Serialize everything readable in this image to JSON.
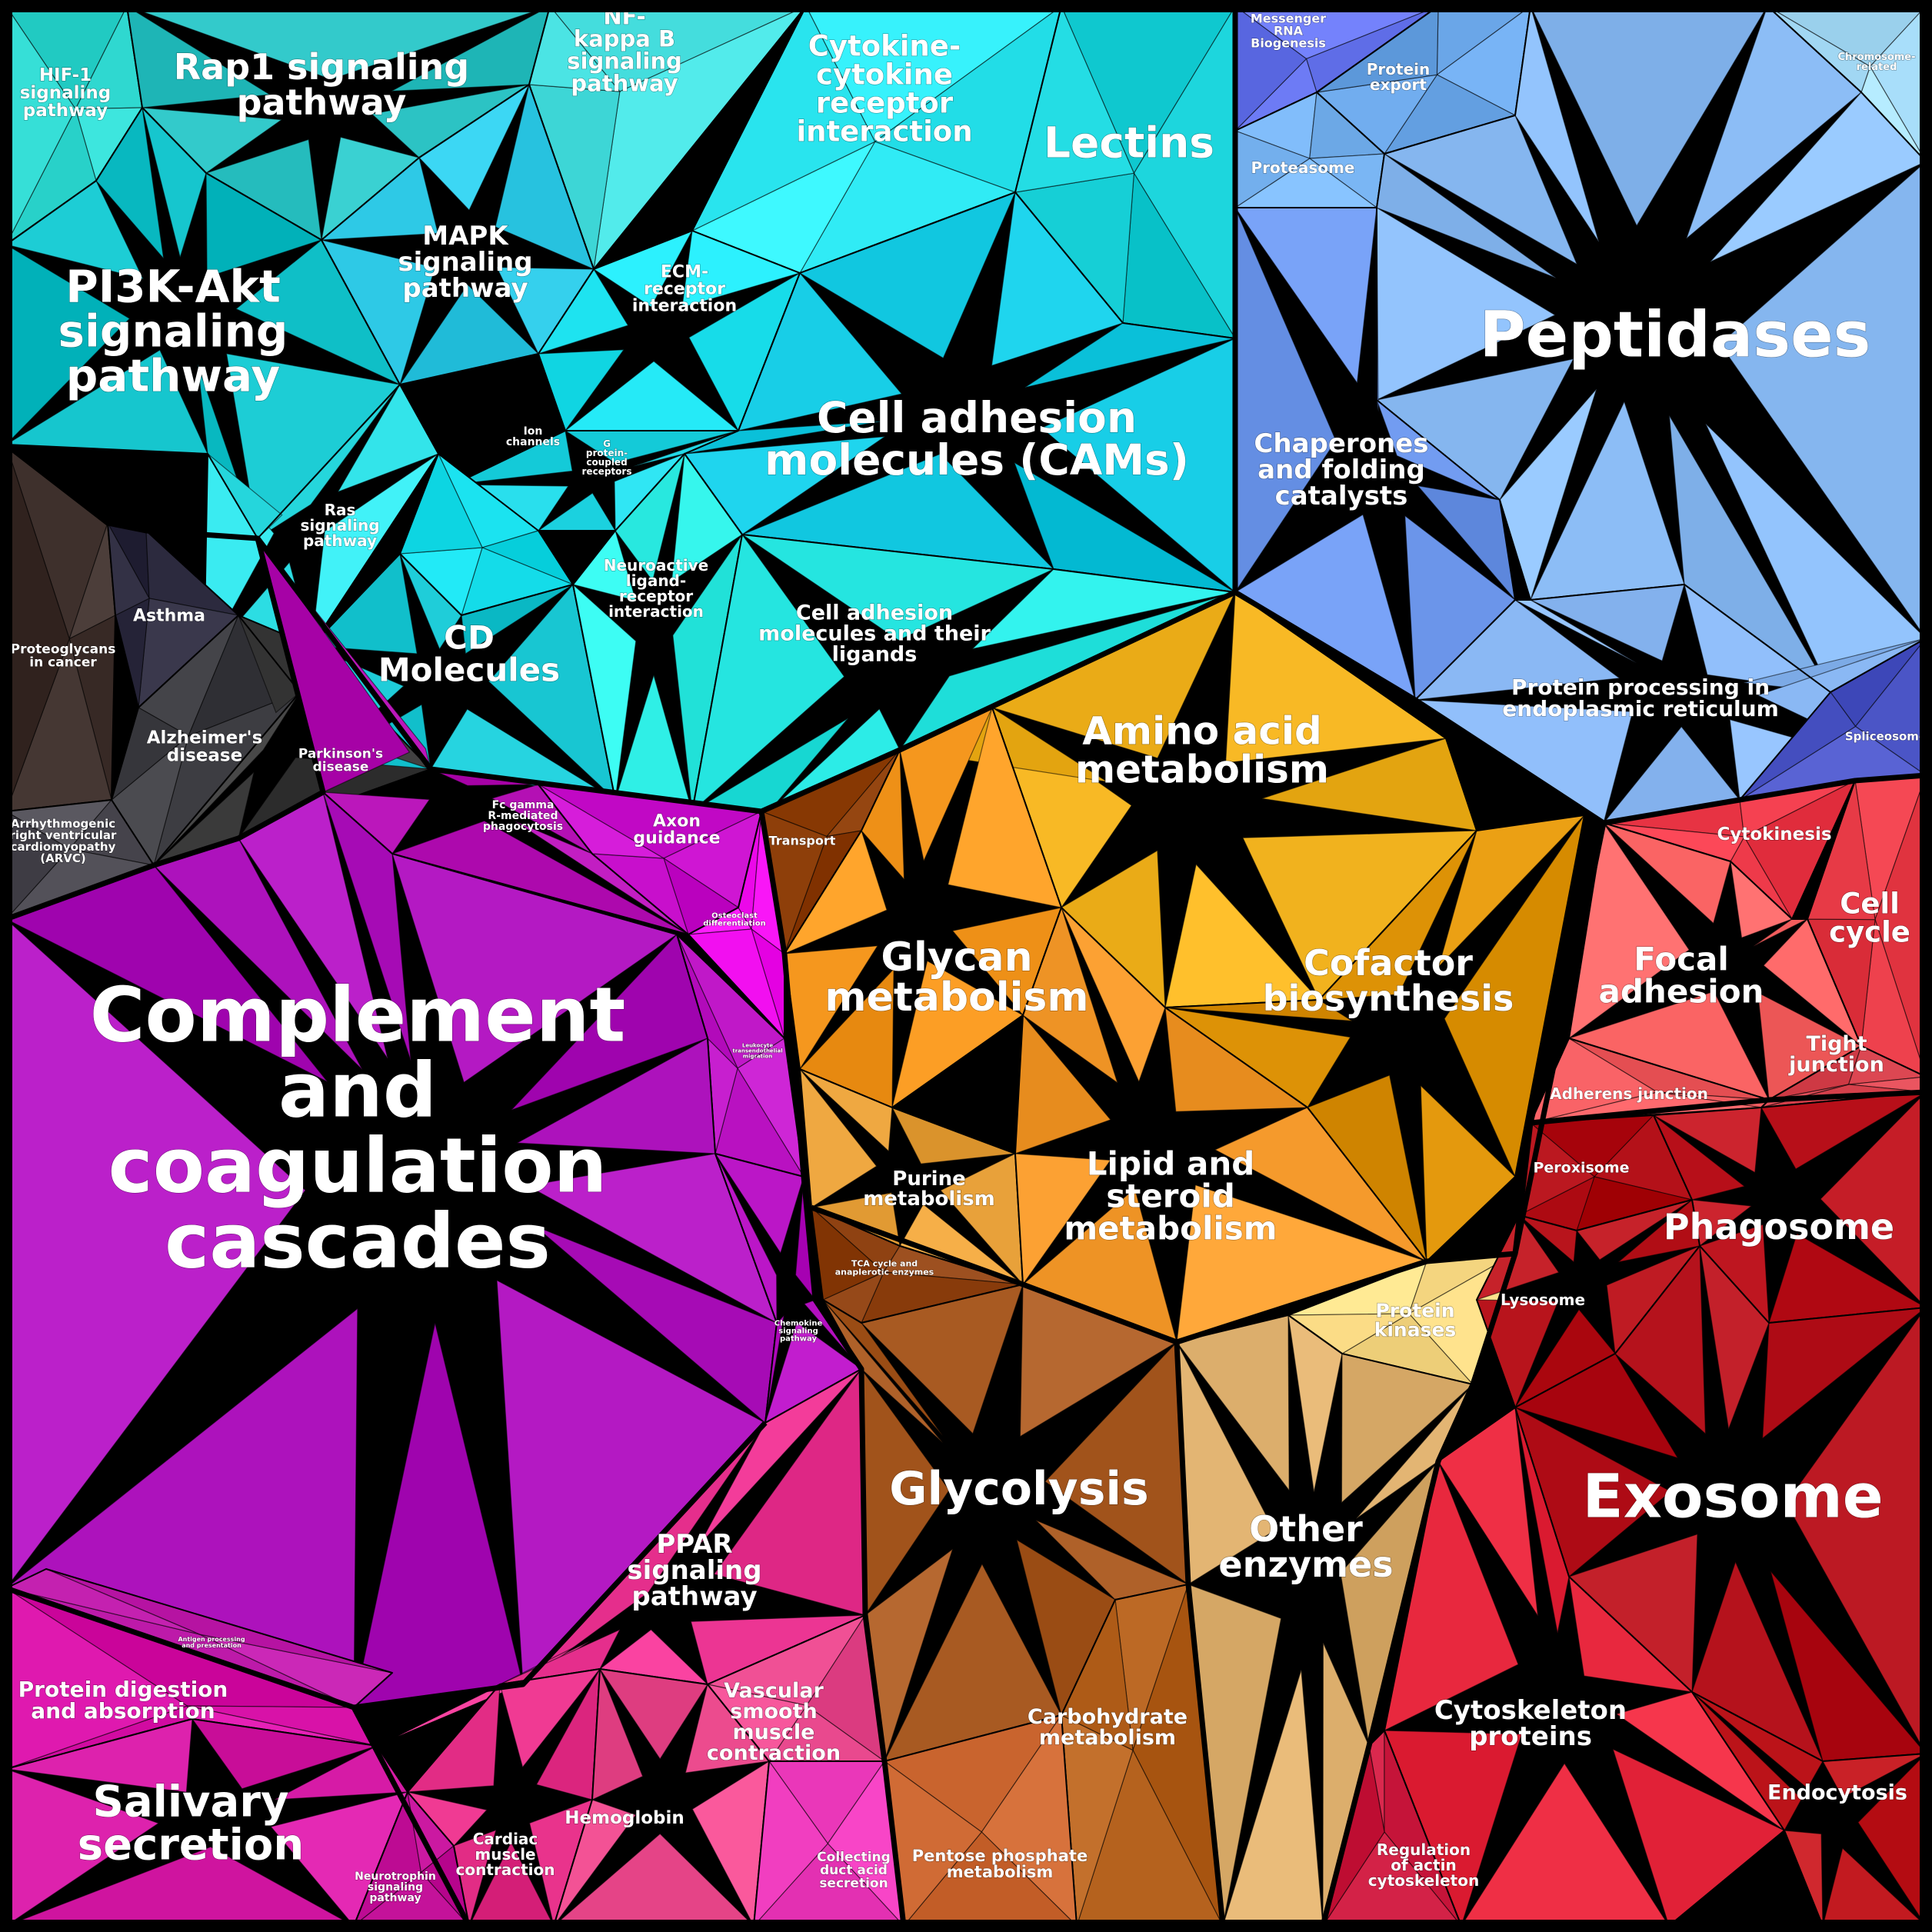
{
  "map": {
    "groups": [
      {
        "id": "signaling",
        "base_color": "#17c7cf",
        "cells": [
          {
            "name": "HIF-1 signaling pathway",
            "lines": [
              "HIF-1",
              "signaling",
              "pathway"
            ],
            "color": "#2fd8d0"
          },
          {
            "name": "Rap1 signaling pathway",
            "lines": [
              "Rap1 signaling",
              "pathway"
            ],
            "color": "#2cc3c4"
          },
          {
            "name": "NF-kappa B signaling pathway",
            "lines": [
              "NF-",
              "kappa B",
              "signaling",
              "pathway"
            ],
            "color": "#4be4e4"
          },
          {
            "name": "PI3K-Akt signaling pathway",
            "lines": [
              "PI3K-Akt",
              "signaling",
              "pathway"
            ],
            "color": "#0fbfc7"
          },
          {
            "name": "MAPK signaling pathway",
            "lines": [
              "MAPK",
              "signaling",
              "pathway"
            ],
            "color": "#2ec9e6"
          },
          {
            "name": "Ras signaling pathway",
            "lines": [
              "Ras",
              "signaling",
              "pathway"
            ],
            "color": "#33e4ea"
          },
          {
            "name": "Cytokine-cytokine receptor interaction",
            "lines": [
              "Cytokine-",
              "cytokine",
              "receptor",
              "interaction"
            ],
            "color": "#30ebf5"
          },
          {
            "name": "Lectins",
            "lines": [
              "Lectins"
            ],
            "color": "#16cfd6"
          },
          {
            "name": "ECM-receptor interaction",
            "lines": [
              "ECM-",
              "receptor",
              "interaction"
            ],
            "color": "#1ee3f0"
          },
          {
            "name": "Cell adhesion molecules (CAMs)",
            "lines": [
              "Cell adhesion",
              "molecules (CAMs)"
            ],
            "color": "#11c7e0"
          },
          {
            "name": "Ion channels",
            "lines": [
              "Ion",
              "channels"
            ],
            "color": "#22d8e6"
          },
          {
            "name": "G protein-coupled receptors",
            "lines": [
              "G",
              "protein-",
              "coupled",
              "receptors"
            ],
            "color": "#14dce9"
          },
          {
            "name": "CD Molecules",
            "lines": [
              "CD",
              "Molecules"
            ],
            "color": "#18c6d2"
          },
          {
            "name": "Neuroactive ligand-receptor interaction",
            "lines": [
              "Neuroactive",
              "ligand-",
              "receptor",
              "interaction"
            ],
            "color": "#2fefe6"
          },
          {
            "name": "Cell adhesion molecules and their ligands",
            "lines": [
              "Cell adhesion",
              "molecules and their",
              "ligands"
            ],
            "color": "#25e5e0"
          }
        ]
      },
      {
        "id": "neuro",
        "base_color": "#3c3c40",
        "cells": [
          {
            "name": "Proteoglycans in cancer",
            "lines": [
              "Proteoglycans",
              "in cancer"
            ],
            "color": "#3e302c"
          },
          {
            "name": "Asthma",
            "lines": [
              "Asthma"
            ],
            "color": "#2c2a3e"
          },
          {
            "name": "Alzheimer's disease",
            "lines": [
              "Alzheimer's",
              "disease"
            ],
            "color": "#3d3d42"
          },
          {
            "name": "Parkinson's disease",
            "lines": [
              "Parkinson's",
              "disease"
            ],
            "color": "#3a3a3a"
          },
          {
            "name": "Arrhythmogenic right ventricular cardiomyopathy (ARVC)",
            "lines": [
              "Arrhythmogenic",
              "right ventricular",
              "cardiomyopathy",
              "(ARVC)"
            ],
            "color": "#4c4a52"
          }
        ]
      },
      {
        "id": "proteostasis",
        "base_color": "#7eb2f2",
        "cells": [
          {
            "name": "Messenger RNA Biogenesis",
            "lines": [
              "Messenger",
              "RNA",
              "Biogenesis"
            ],
            "color": "#6674ee"
          },
          {
            "name": "Protein export",
            "lines": [
              "Protein",
              "export"
            ],
            "color": "#6aa6e8"
          },
          {
            "name": "Chromosome-related",
            "lines": [
              "Chromosome-",
              "related"
            ],
            "color": "#a8defa"
          },
          {
            "name": "Proteasome",
            "lines": [
              "Proteasome"
            ],
            "color": "#7ab6f4"
          },
          {
            "name": "Peptidases",
            "lines": [
              "Peptidases"
            ],
            "color": "#8cbdf6"
          },
          {
            "name": "Chaperones and folding catalysts",
            "lines": [
              "Chaperones",
              "and folding",
              "catalysts"
            ],
            "color": "#6b95ea"
          },
          {
            "name": "Protein processing in endoplasmic reticulum",
            "lines": [
              "Protein processing in",
              "endoplasmic reticulum"
            ],
            "color": "#8ab8f4"
          },
          {
            "name": "Spliceosome",
            "lines": [
              "Spliceosome"
            ],
            "color": "#4b55c6"
          }
        ]
      },
      {
        "id": "metabolism",
        "base_color": "#f0a224",
        "cells": [
          {
            "name": "Transport",
            "lines": [
              "Transport"
            ],
            "color": "#8e3f0a"
          },
          {
            "name": "Amino acid metabolism",
            "lines": [
              "Amino acid",
              "metabolism"
            ],
            "color": "#f1b21e"
          },
          {
            "name": "Glycan metabolism",
            "lines": [
              "Glycan",
              "metabolism"
            ],
            "color": "#f5971e"
          },
          {
            "name": "Cofactor biosynthesis",
            "lines": [
              "Cofactor",
              "biosynthesis"
            ],
            "color": "#dd9206"
          },
          {
            "name": "Purine metabolism",
            "lines": [
              "Purine",
              "metabolism"
            ],
            "color": "#e8a13a"
          },
          {
            "name": "Lipid and steroid metabolism",
            "lines": [
              "Lipid and",
              "steroid",
              "metabolism"
            ],
            "color": "#f59a2c"
          }
        ]
      },
      {
        "id": "immune",
        "base_color": "#b415c0",
        "cells": [
          {
            "name": "Fc gamma R-mediated phagocytosis",
            "lines": [
              "Fc gamma",
              "R-mediated",
              "phagocytosis"
            ],
            "color": "#b410b4"
          },
          {
            "name": "Axon guidance",
            "lines": [
              "Axon",
              "guidance"
            ],
            "color": "#c80fcc"
          },
          {
            "name": "Osteoclast differentiation",
            "lines": [
              "Osteoclast",
              "differentiation"
            ],
            "color": "#f20ff0"
          },
          {
            "name": "Leukocyte transendothelial migration",
            "lines": [
              "Leukocyte",
              "transendothelial",
              "migration"
            ],
            "color": "#c018c8"
          },
          {
            "name": "Complement and coagulation cascades",
            "lines": [
              "Complement",
              "and",
              "coagulation",
              "cascades"
            ],
            "color": "#ad12bc"
          },
          {
            "name": "Chemokine signaling pathway",
            "lines": [
              "Chemokine",
              "signaling",
              "pathway"
            ],
            "color": "#b40fc0"
          },
          {
            "name": "Antigen processing and presentation",
            "lines": [
              "Antigen processing",
              "and presentation"
            ],
            "color": "#c421b0"
          }
        ]
      },
      {
        "id": "digestion",
        "base_color": "#e52c97",
        "cells": [
          {
            "name": "Protein digestion and absorption",
            "lines": [
              "Protein digestion",
              "and absorption"
            ],
            "color": "#d812a8"
          },
          {
            "name": "Salivary secretion",
            "lines": [
              "Salivary",
              "secretion"
            ],
            "color": "#d61ba6"
          },
          {
            "name": "Neurotrophin signaling pathway",
            "lines": [
              "Neurotrophin",
              "signaling",
              "pathway"
            ],
            "color": "#c4129a"
          },
          {
            "name": "PPAR signaling pathway",
            "lines": [
              "PPAR",
              "signaling",
              "pathway"
            ],
            "color": "#ec3593"
          },
          {
            "name": "Cardiac muscle contraction",
            "lines": [
              "Cardiac",
              "muscle",
              "contraction"
            ],
            "color": "#e22c85"
          },
          {
            "name": "Hemoglobin",
            "lines": [
              "Hemoglobin"
            ],
            "color": "#ec4b8e"
          },
          {
            "name": "Vascular smooth muscle contraction",
            "lines": [
              "Vascular",
              "smooth",
              "muscle",
              "contraction"
            ],
            "color": "#e9498e"
          },
          {
            "name": "Collecting duct acid secretion",
            "lines": [
              "Collecting",
              "duct acid",
              "secretion"
            ],
            "color": "#f13ec0"
          }
        ]
      },
      {
        "id": "energy",
        "base_color": "#a9561e",
        "cells": [
          {
            "name": "TCA cycle and anaplerotic enzymes",
            "lines": [
              "TCA cycle and",
              "anaplerotic enzymes"
            ],
            "color": "#8f4212"
          },
          {
            "name": "Glycolysis",
            "lines": [
              "Glycolysis"
            ],
            "color": "#a85a22"
          },
          {
            "name": "Carbohydrate metabolism",
            "lines": [
              "Carbohydrate",
              "metabolism"
            ],
            "color": "#b5621e"
          },
          {
            "name": "Pentose phosphate metabolism",
            "lines": [
              "Pentose phosphate",
              "metabolism"
            ],
            "color": "#d06b35"
          }
        ]
      },
      {
        "id": "enzymes",
        "base_color": "#e8b874",
        "cells": [
          {
            "name": "Protein kinases",
            "lines": [
              "Protein",
              "kinases"
            ],
            "color": "#fbdc86"
          },
          {
            "name": "Other enzymes",
            "lines": [
              "Other",
              "enzymes"
            ],
            "color": "#dcae6c"
          }
        ]
      },
      {
        "id": "cellular",
        "base_color": "#d8242e",
        "cells": [
          {
            "name": "Cytokinesis",
            "lines": [
              "Cytokinesis"
            ],
            "color": "#ee3a4a"
          },
          {
            "name": "Cell cycle",
            "lines": [
              "Cell",
              "cycle"
            ],
            "color": "#e73a46"
          },
          {
            "name": "Focal adhesion",
            "lines": [
              "Focal",
              "adhesion"
            ],
            "color": "#fa6464"
          },
          {
            "name": "Tight junction",
            "lines": [
              "Tight",
              "junction"
            ],
            "color": "#dc4752"
          },
          {
            "name": "Adherens junction",
            "lines": [
              "Adherens junction"
            ],
            "color": "#f25c60"
          },
          {
            "name": "Peroxisome",
            "lines": [
              "Peroxisome"
            ],
            "color": "#ad0a12"
          },
          {
            "name": "Phagosome",
            "lines": [
              "Phagosome"
            ],
            "color": "#be1620"
          },
          {
            "name": "Lysosome",
            "lines": [
              "Lysosome"
            ],
            "color": "#b8141c"
          },
          {
            "name": "Exosome",
            "lines": [
              "Exosome"
            ],
            "color": "#b5121c"
          },
          {
            "name": "Cytoskeleton proteins",
            "lines": [
              "Cytoskeleton",
              "proteins"
            ],
            "color": "#e8283e"
          },
          {
            "name": "Endocytosis",
            "lines": [
              "Endocytosis"
            ],
            "color": "#c21a20"
          },
          {
            "name": "Regulation of actin cytoskeleton",
            "lines": [
              "Regulation",
              "of actin",
              "cytoskeleton"
            ],
            "color": "#cc1b40"
          }
        ]
      }
    ]
  }
}
